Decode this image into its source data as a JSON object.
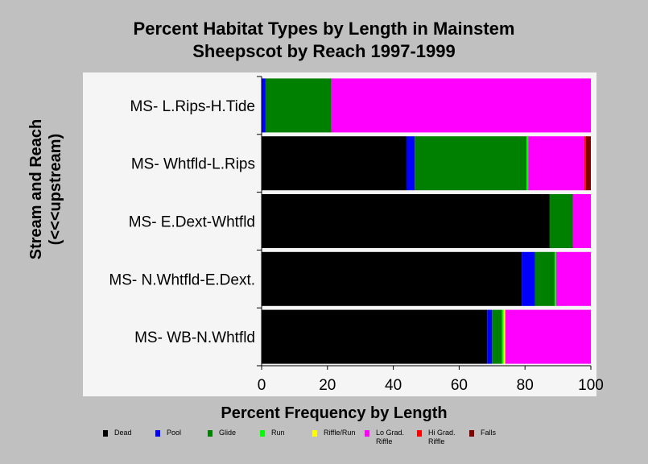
{
  "chart_data": {
    "type": "bar",
    "orientation": "horizontal",
    "stacked": true,
    "title": [
      "Percent Habitat Types by Length in Mainstem",
      "Sheepscot by Reach 1997-1999"
    ],
    "xlabel": "Percent Frequency by Length",
    "ylabel": [
      "Stream and Reach",
      "(<<<upstream)"
    ],
    "xlim": [
      0,
      100
    ],
    "xticks": [
      0,
      20,
      40,
      60,
      80,
      100
    ],
    "grid": false,
    "legend_position": "bottom",
    "categories": [
      "MS- L.Rips-H.Tide",
      "MS- Whtfld-L.Rips",
      "MS- E.Dext-Whtfld",
      "MS- N.Whtfld-E.Dext.",
      "MS- WB-N.Whtfld"
    ],
    "series": [
      {
        "name": "Dead",
        "color": "#000000",
        "values": [
          0,
          44,
          87.5,
          79,
          68.5
        ]
      },
      {
        "name": "Pool",
        "color": "#0000ff",
        "values": [
          1.2,
          2.5,
          0,
          4,
          1.5
        ]
      },
      {
        "name": "Glide",
        "color": "#008000",
        "values": [
          20,
          34,
          7,
          6,
          3
        ]
      },
      {
        "name": "Run",
        "color": "#00ff00",
        "values": [
          0,
          0.5,
          0,
          0.5,
          0.5
        ]
      },
      {
        "name": "Riffle/Run",
        "color": "#ffff00",
        "values": [
          0,
          0,
          0,
          0,
          0.5
        ]
      },
      {
        "name": "Lo Grad. Riffle",
        "color": "#ff00ff",
        "values": [
          78.8,
          17,
          5.5,
          10.5,
          26
        ]
      },
      {
        "name": "Hi Grad. Riffle",
        "color": "#ff0000",
        "values": [
          0,
          0.5,
          0,
          0,
          0
        ]
      },
      {
        "name": "Falls",
        "color": "#800000",
        "values": [
          0,
          1.5,
          0,
          0,
          0
        ]
      }
    ]
  },
  "legend_labels": [
    [
      "Dead"
    ],
    [
      "Pool"
    ],
    [
      "Glide"
    ],
    [
      "Run"
    ],
    [
      "Riffle/Run"
    ],
    [
      "Lo Grad.",
      "Riffle"
    ],
    [
      "Hi Grad.",
      "Riffle"
    ],
    [
      "Falls"
    ]
  ]
}
